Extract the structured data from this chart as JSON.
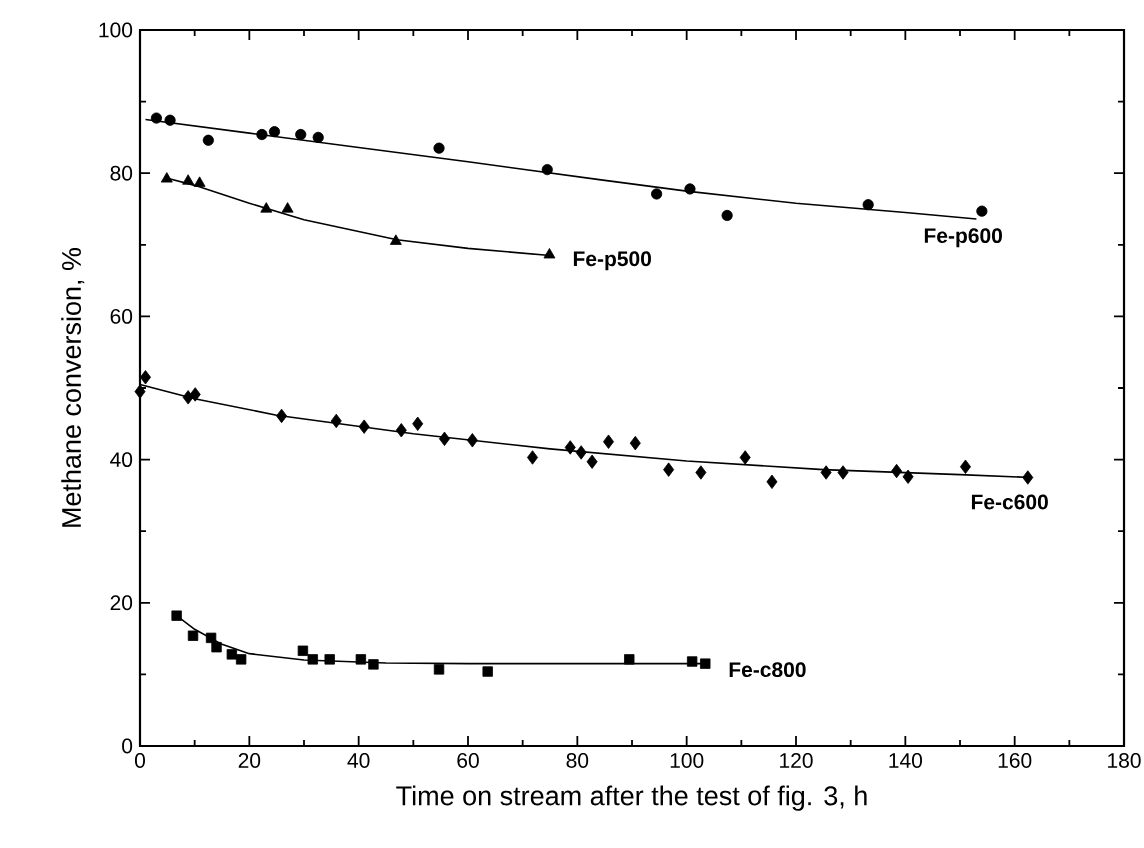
{
  "chart_data": {
    "type": "scatter",
    "xlabel": "Time on stream after the test of fig. 3, h",
    "ylabel": "Methane conversion, %",
    "xlim": [
      0,
      180
    ],
    "xticks": [
      0,
      20,
      40,
      60,
      80,
      100,
      120,
      140,
      160,
      180
    ],
    "ylim": [
      0,
      100
    ],
    "yticks": [
      0,
      20,
      40,
      60,
      80,
      100
    ],
    "grid": false,
    "legend": false,
    "series": [
      {
        "name": "Fe-p600",
        "color": "#000000",
        "marker": "circle",
        "x": [
          3.0,
          5.5,
          12.5,
          22.3,
          24.6,
          29.4,
          32.6,
          54.7,
          74.5,
          94.5,
          100.6,
          107.4,
          133.2,
          154
        ],
        "values": [
          87.7,
          87.4,
          84.6,
          85.4,
          85.8,
          85.4,
          85.0,
          83.5,
          80.5,
          77.1,
          77.8,
          74.1,
          75.6,
          74.7
        ]
      },
      {
        "type": "line",
        "color": "#000000",
        "marker": "none",
        "x": [
          1,
          20,
          40,
          60,
          84,
          100,
          120,
          140,
          153
        ],
        "values": [
          87.5,
          85.6,
          83.6,
          81.6,
          79.1,
          77.5,
          75.8,
          74.5,
          73.6
        ]
      },
      {
        "name": "Fe-p500",
        "color": "#000000",
        "marker": "triangle",
        "x": [
          4.9,
          8.8,
          10.9,
          23.1,
          27.0,
          46.8,
          74.9
        ],
        "values": [
          79.2,
          78.9,
          78.6,
          75.0,
          75.0,
          70.5,
          68.6
        ]
      },
      {
        "type": "line",
        "color": "#000000",
        "marker": "none",
        "x": [
          5,
          10,
          20,
          30,
          47,
          60,
          75
        ],
        "values": [
          79.3,
          78.3,
          75.8,
          73.5,
          70.7,
          69.5,
          68.5
        ]
      },
      {
        "name": "Fe-c600",
        "color": "#000000",
        "marker": "diamond",
        "x": [
          0,
          1.0,
          8.8,
          10.1,
          25.9,
          35.9,
          41,
          47.8,
          50.8,
          55.7,
          60.8,
          71.8,
          78.7,
          80.7,
          82.7,
          85.7,
          90.6,
          96.7,
          102.6,
          110.7,
          115.6,
          125.5,
          128.6,
          138.4,
          140.5,
          151,
          162.4
        ],
        "values": [
          49.5,
          51.5,
          48.7,
          49.1,
          46.1,
          45.4,
          44.6,
          44.1,
          45.0,
          42.9,
          42.7,
          40.3,
          41.7,
          41.0,
          39.7,
          42.5,
          42.3,
          38.6,
          38.2,
          40.3,
          36.9,
          38.2,
          38.2,
          38.4,
          37.6,
          39.0,
          37.5
        ]
      },
      {
        "type": "line",
        "color": "#000000",
        "marker": "none",
        "x": [
          0,
          10,
          25,
          50,
          75,
          100,
          125,
          150,
          163
        ],
        "values": [
          50.5,
          48.5,
          46.2,
          43.6,
          41.5,
          39.8,
          38.6,
          37.9,
          37.5
        ]
      },
      {
        "name": "Fe-c800",
        "color": "#000000",
        "marker": "square",
        "x": [
          6.7,
          9.7,
          13.0,
          14.0,
          16.8,
          18.5,
          29.8,
          31.6,
          34.7,
          40.4,
          42.7,
          54.7,
          63.6,
          89.5,
          101,
          103.4
        ],
        "values": [
          18.2,
          15.4,
          15.1,
          13.8,
          12.8,
          12.1,
          13.3,
          12.1,
          12.1,
          12.1,
          11.4,
          10.7,
          10.4,
          12.1,
          11.8,
          11.5
        ]
      },
      {
        "type": "line",
        "color": "#000000",
        "marker": "none",
        "x": [
          6.7,
          10,
          15,
          20,
          30,
          45,
          60,
          80,
          103
        ],
        "values": [
          18.2,
          16.3,
          14.2,
          12.9,
          12.0,
          11.6,
          11.5,
          11.5,
          11.5
        ]
      }
    ]
  }
}
